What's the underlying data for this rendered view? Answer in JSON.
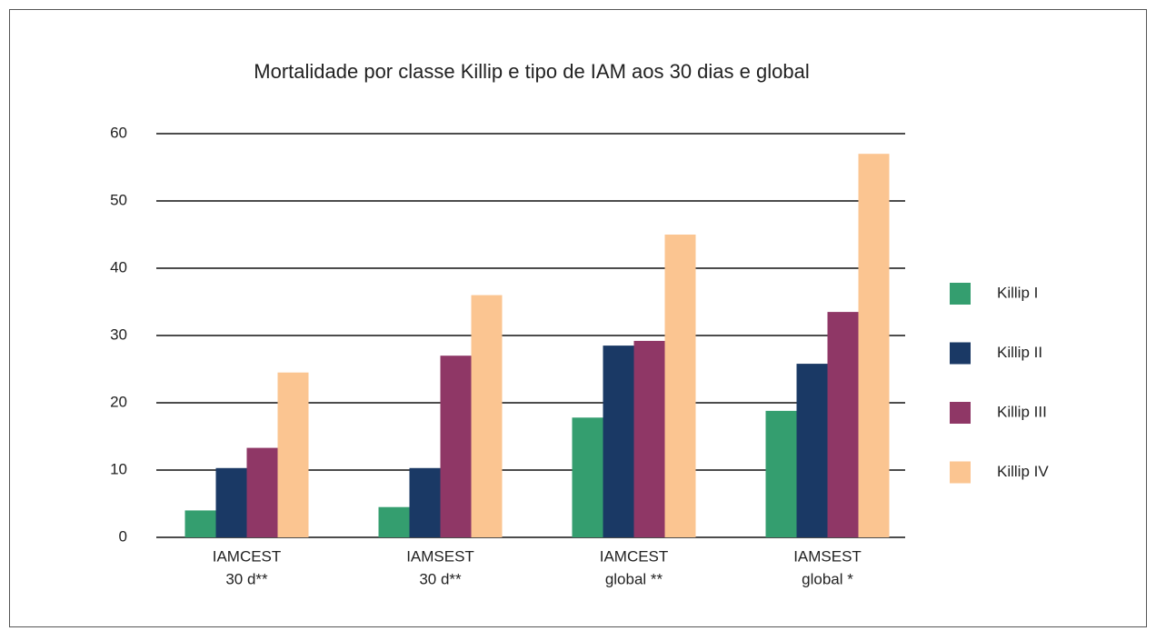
{
  "chart_data": {
    "type": "bar",
    "title": "Mortalidade por classe Killip e tipo de IAM aos 30 dias e global",
    "categories": [
      [
        "IAMCEST",
        "30 d**"
      ],
      [
        "IAMSEST",
        "30 d**"
      ],
      [
        "IAMCEST",
        "global **"
      ],
      [
        "IAMSEST",
        "global *"
      ]
    ],
    "series": [
      {
        "name": "Killip I",
        "color": "#349e6f",
        "values": [
          4,
          4.5,
          17.8,
          18.8
        ]
      },
      {
        "name": "Killip II",
        "color": "#1a3965",
        "values": [
          10.3,
          10.3,
          28.5,
          25.8
        ]
      },
      {
        "name": "Killip III",
        "color": "#8f3766",
        "values": [
          13.3,
          27,
          29.2,
          33.5
        ]
      },
      {
        "name": "Killip IV",
        "color": "#fbc591",
        "values": [
          24.5,
          36,
          45,
          57
        ]
      }
    ],
    "ylim": [
      0,
      60
    ],
    "yticks": [
      0,
      10,
      20,
      30,
      40,
      50,
      60
    ],
    "grid": true,
    "legend": "right"
  }
}
